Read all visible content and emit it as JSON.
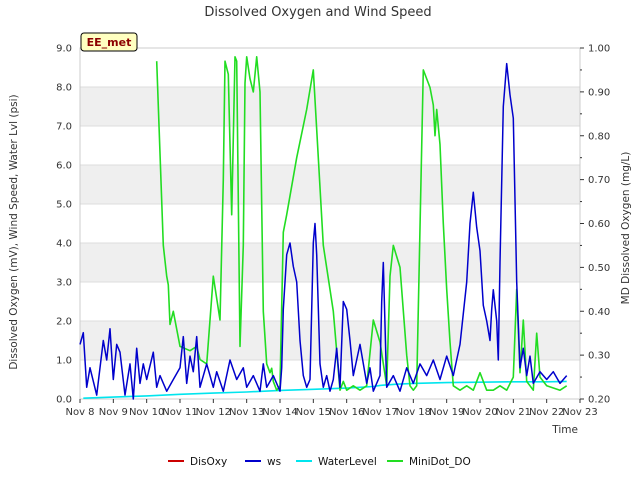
{
  "chart_data": {
    "type": "line",
    "title": "Dissolved Oxygen and Wind Speed",
    "badge": "EE_met",
    "xlabel": "Time",
    "ylabel_left": "Dissolved Oxygen (mV), Wind Speed, Water Lvl (psi)",
    "ylabel_right": "MD Dissolved Oxygen (mg/L)",
    "x_ticks": [
      "Nov 8",
      "Nov 9",
      "Nov 10",
      "Nov 11",
      "Nov 12",
      "Nov 13",
      "Nov 14",
      "Nov 15",
      "Nov 16",
      "Nov 17",
      "Nov 18",
      "Nov 19",
      "Nov 20",
      "Nov 21",
      "Nov 22",
      "Nov 23"
    ],
    "xlim_days": [
      8,
      23
    ],
    "ylim_left": [
      0,
      9
    ],
    "ylim_right": [
      0.2,
      1.0
    ],
    "y_ticks_left": [
      "0.0",
      "1.0",
      "2.0",
      "3.0",
      "4.0",
      "5.0",
      "6.0",
      "7.0",
      "8.0",
      "9.0"
    ],
    "y_ticks_right": [
      "0.20",
      "0.30",
      "0.40",
      "0.50",
      "0.60",
      "0.70",
      "0.80",
      "0.90",
      "1.00"
    ],
    "grid": true,
    "legend_position": "bottom",
    "colors": {
      "DisOxy": "#cc0000",
      "ws": "#0000cc",
      "WaterLevel": "#00e5ee",
      "MiniDot_DO": "#22dd22",
      "band": "#efefef",
      "badge_bg": "#ffffc0"
    },
    "series": [
      {
        "name": "DisOxy",
        "axis": "left",
        "x": [],
        "values": []
      },
      {
        "name": "ws",
        "axis": "left",
        "x": [
          8.0,
          8.1,
          8.2,
          8.3,
          8.5,
          8.7,
          8.8,
          8.9,
          9.0,
          9.1,
          9.2,
          9.35,
          9.5,
          9.6,
          9.7,
          9.8,
          9.9,
          10.0,
          10.2,
          10.3,
          10.4,
          10.6,
          10.8,
          11.0,
          11.1,
          11.2,
          11.3,
          11.4,
          11.5,
          11.6,
          11.8,
          12.0,
          12.1,
          12.3,
          12.5,
          12.7,
          12.9,
          13.0,
          13.2,
          13.4,
          13.5,
          13.6,
          13.8,
          14.0,
          14.05,
          14.1,
          14.2,
          14.3,
          14.4,
          14.5,
          14.6,
          14.7,
          14.8,
          14.9,
          15.0,
          15.05,
          15.1,
          15.2,
          15.3,
          15.4,
          15.5,
          15.6,
          15.7,
          15.8,
          15.9,
          16.0,
          16.1,
          16.2,
          16.4,
          16.6,
          16.7,
          16.8,
          17.0,
          17.05,
          17.1,
          17.2,
          17.4,
          17.6,
          17.8,
          18.0,
          18.2,
          18.4,
          18.6,
          18.8,
          19.0,
          19.2,
          19.4,
          19.6,
          19.7,
          19.8,
          19.9,
          20.0,
          20.1,
          20.2,
          20.3,
          20.35,
          20.4,
          20.5,
          20.55,
          20.6,
          20.7,
          20.8,
          20.9,
          21.0,
          21.1,
          21.2,
          21.3,
          21.4,
          21.5,
          21.6,
          21.8,
          22.0,
          22.2,
          22.4,
          22.6
        ],
        "values": [
          1.4,
          1.7,
          0.3,
          0.8,
          0.1,
          1.5,
          1.0,
          1.8,
          0.5,
          1.4,
          1.2,
          0.1,
          0.9,
          0.0,
          1.3,
          0.4,
          0.9,
          0.5,
          1.2,
          0.3,
          0.6,
          0.2,
          0.5,
          0.8,
          1.6,
          0.4,
          1.1,
          0.7,
          1.6,
          0.3,
          0.9,
          0.3,
          0.7,
          0.2,
          1.0,
          0.5,
          0.8,
          0.3,
          0.6,
          0.2,
          0.9,
          0.3,
          0.6,
          0.2,
          0.8,
          2.3,
          3.7,
          4.0,
          3.4,
          3.0,
          1.5,
          0.6,
          0.3,
          0.5,
          4.0,
          4.5,
          3.7,
          0.9,
          0.3,
          0.6,
          0.2,
          0.5,
          1.3,
          0.3,
          2.5,
          2.3,
          1.5,
          0.6,
          1.4,
          0.4,
          0.8,
          0.2,
          0.6,
          2.5,
          3.5,
          0.3,
          0.6,
          0.2,
          0.8,
          0.4,
          0.9,
          0.6,
          1.0,
          0.5,
          1.1,
          0.6,
          1.4,
          3.0,
          4.5,
          5.3,
          4.4,
          3.8,
          2.4,
          2.0,
          1.5,
          2.3,
          2.8,
          2.0,
          1.0,
          3.5,
          7.5,
          8.6,
          7.8,
          7.2,
          3.0,
          0.8,
          1.3,
          0.6,
          1.1,
          0.4,
          0.7,
          0.5,
          0.7,
          0.4,
          0.6
        ]
      },
      {
        "name": "WaterLevel",
        "axis": "left",
        "x": [
          8.1,
          9.0,
          10.0,
          11.0,
          12.0,
          13.0,
          14.0,
          15.0,
          16.0,
          16.8,
          17.0,
          17.5,
          18.0,
          19.0,
          20.0,
          21.0,
          22.0,
          22.6
        ],
        "values": [
          0.02,
          0.05,
          0.08,
          0.12,
          0.15,
          0.18,
          0.22,
          0.25,
          0.28,
          0.32,
          0.35,
          0.38,
          0.4,
          0.42,
          0.43,
          0.44,
          0.44,
          0.45
        ]
      },
      {
        "name": "MiniDot_DO",
        "axis": "right",
        "x": [
          10.3,
          10.5,
          10.6,
          10.65,
          10.7,
          10.8,
          11.0,
          11.3,
          11.5,
          11.6,
          11.8,
          12.0,
          12.2,
          12.3,
          12.35,
          12.45,
          12.55,
          12.65,
          12.7,
          12.8,
          12.9,
          12.95,
          13.0,
          13.1,
          13.2,
          13.3,
          13.4,
          13.5,
          13.6,
          13.7,
          13.75,
          13.8,
          13.9,
          14.0,
          14.1,
          14.2,
          14.5,
          14.8,
          15.0,
          15.3,
          15.6,
          15.8,
          15.9,
          16.0,
          16.2,
          16.4,
          16.6,
          16.8,
          17.0,
          17.2,
          17.3,
          17.4,
          17.6,
          17.8,
          17.9,
          18.0,
          18.1,
          18.3,
          18.5,
          18.6,
          18.65,
          18.7,
          18.8,
          18.9,
          19.0,
          19.1,
          19.2,
          19.4,
          19.6,
          19.8,
          20.0,
          20.1,
          20.2,
          20.4,
          20.6,
          20.8,
          21.0,
          21.1,
          21.2,
          21.3,
          21.4,
          21.6,
          21.7,
          21.8,
          22.0,
          22.4,
          22.6
        ],
        "values": [
          0.97,
          0.55,
          0.48,
          0.46,
          0.37,
          0.4,
          0.32,
          0.31,
          0.32,
          0.29,
          0.28,
          0.48,
          0.38,
          0.7,
          0.97,
          0.94,
          0.62,
          0.98,
          0.97,
          0.32,
          0.55,
          0.92,
          0.98,
          0.93,
          0.9,
          0.98,
          0.9,
          0.4,
          0.28,
          0.26,
          0.27,
          0.24,
          0.22,
          0.23,
          0.58,
          0.62,
          0.75,
          0.86,
          0.95,
          0.55,
          0.4,
          0.22,
          0.24,
          0.22,
          0.23,
          0.22,
          0.23,
          0.38,
          0.33,
          0.23,
          0.48,
          0.55,
          0.5,
          0.3,
          0.23,
          0.22,
          0.23,
          0.95,
          0.91,
          0.87,
          0.8,
          0.86,
          0.78,
          0.6,
          0.45,
          0.33,
          0.23,
          0.22,
          0.23,
          0.22,
          0.26,
          0.24,
          0.22,
          0.22,
          0.23,
          0.22,
          0.25,
          0.45,
          0.26,
          0.38,
          0.24,
          0.22,
          0.35,
          0.25,
          0.23,
          0.22,
          0.23
        ]
      }
    ]
  }
}
